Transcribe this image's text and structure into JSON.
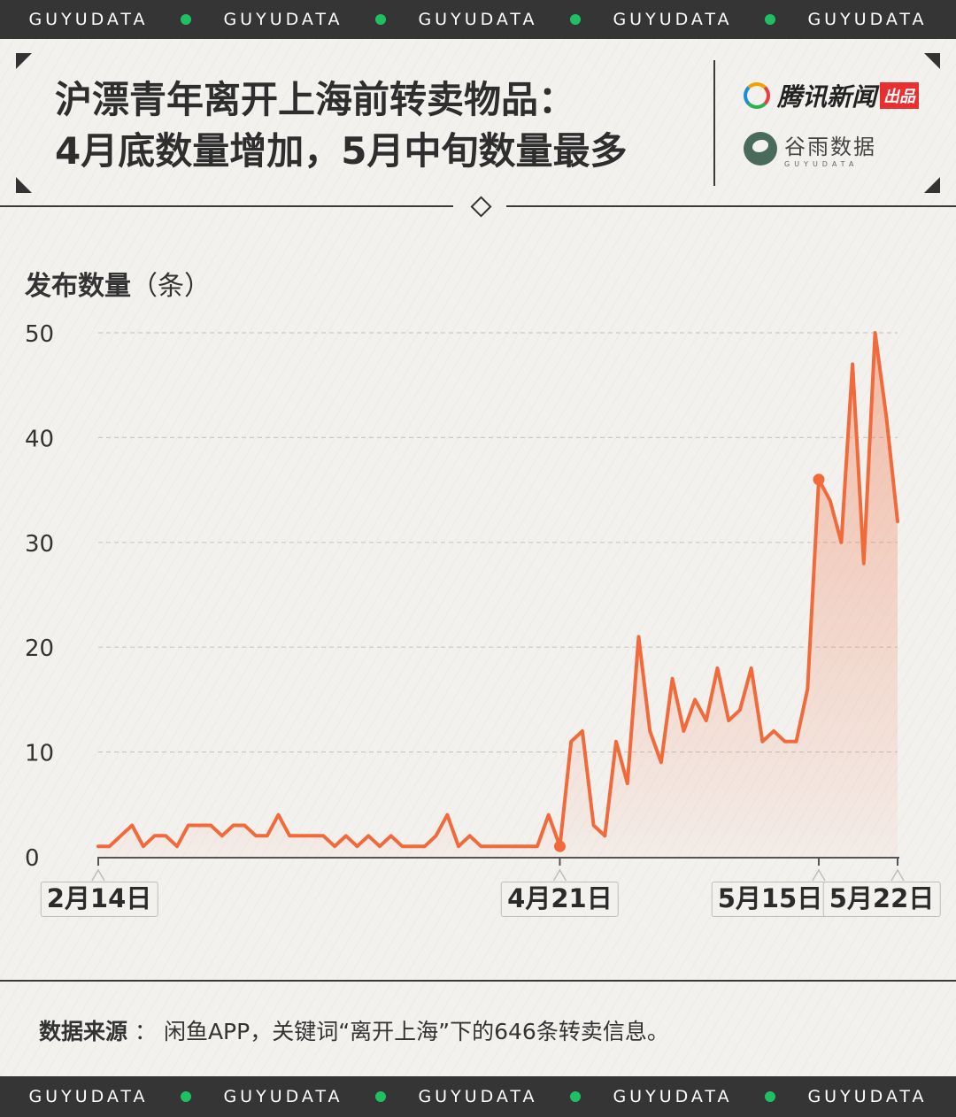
{
  "brand_band": {
    "text": "GUYUDATA",
    "dot_color": "#1fbf63"
  },
  "header": {
    "title_line1": "沪漂青年离开上海前转卖物品：",
    "title_line2": "4月底数量增加，5月中旬数量最多",
    "publisher1": "腾讯新闻",
    "publisher1_tag": "出品",
    "publisher2": "谷雨数据",
    "publisher2_sub": "GUYUDATA"
  },
  "chart_data": {
    "type": "area",
    "ylabel": "发布数量",
    "yunit": "（条）",
    "ylim": [
      0,
      50
    ],
    "yticks": [
      0,
      10,
      20,
      30,
      40,
      50
    ],
    "grid": true,
    "line_color": "#f06a3c",
    "x_tick_labels": [
      {
        "label": "2月14日",
        "index": 0
      },
      {
        "label": "4月21日",
        "index": 41
      },
      {
        "label": "5月15日",
        "index": 64
      },
      {
        "label": "5月22日",
        "index": 71
      }
    ],
    "highlighted_points": [
      41,
      64
    ],
    "values": [
      1,
      1,
      2,
      3,
      1,
      2,
      2,
      1,
      3,
      3,
      3,
      2,
      3,
      3,
      2,
      2,
      4,
      2,
      2,
      2,
      2,
      1,
      2,
      1,
      2,
      1,
      2,
      1,
      1,
      1,
      2,
      4,
      1,
      2,
      1,
      1,
      1,
      1,
      1,
      1,
      4,
      1,
      11,
      12,
      3,
      2,
      11,
      7,
      21,
      12,
      9,
      17,
      12,
      15,
      13,
      18,
      13,
      14,
      18,
      11,
      12,
      11,
      11,
      16,
      36,
      34,
      30,
      47,
      28,
      50,
      42,
      32
    ]
  },
  "footer": {
    "source_label": "数据来源",
    "source_sep": "：",
    "source_text": "闲鱼APP，关键词“离开上海”下的646条转卖信息。"
  }
}
